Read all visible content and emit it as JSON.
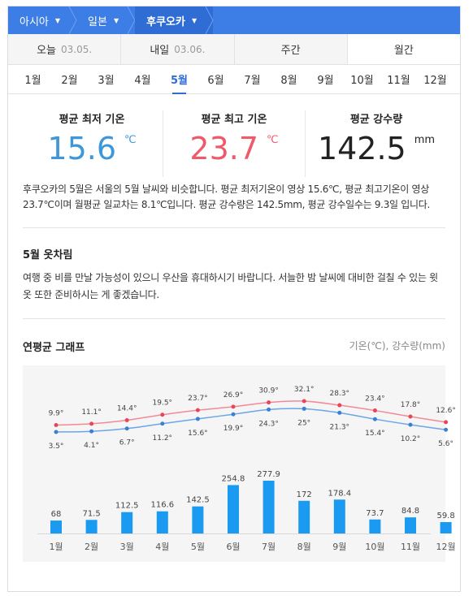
{
  "breadcrumb": [
    {
      "label": "아시아"
    },
    {
      "label": "일본"
    },
    {
      "label": "후쿠오카"
    }
  ],
  "day_tabs": [
    {
      "label": "오늘",
      "date": "03.05."
    },
    {
      "label": "내일",
      "date": "03.06."
    },
    {
      "label": "주간",
      "date": ""
    },
    {
      "label": "월간",
      "date": ""
    }
  ],
  "months": [
    "1월",
    "2월",
    "3월",
    "4월",
    "5월",
    "6월",
    "7월",
    "8월",
    "9월",
    "10월",
    "11월",
    "12월"
  ],
  "selected_month": "5월",
  "stats": {
    "min": {
      "label": "평균 최저 기온",
      "value": "15.6",
      "unit": "℃"
    },
    "max": {
      "label": "평균 최고 기온",
      "value": "23.7",
      "unit": "℃"
    },
    "rain": {
      "label": "평균 강수량",
      "value": "142.5",
      "unit": "mm"
    }
  },
  "description": "후쿠오카의 5월은 서울의 5월 날씨와 비슷합니다. 평균 최저기온이 영상 15.6℃, 평균 최고기온이 영상 23.7℃이며 월평균 일교차는 8.1℃입니다. 평균 강수량은 142.5mm, 평균 강수일수는 9.3일 입니다.",
  "clothing": {
    "title": "5월 옷차림",
    "text": "여행 중 비를 만날 가능성이 있으니 우산을 휴대하시기 바랍니다. 서늘한 밤 날씨에 대비한 걸칠 수 있는 윗옷 또한 준비하시는 게 좋겠습니다."
  },
  "graph": {
    "title": "연평균 그래프",
    "units": "기온(℃), 강수량(mm)"
  },
  "colors": {
    "accent": "#3d7ee6",
    "max_line": "#f28a97",
    "min_line": "#6aa6e8",
    "bar": "#1a9af0"
  },
  "chart_data": {
    "type": "bar",
    "categories": [
      "1월",
      "2월",
      "3월",
      "4월",
      "5월",
      "6월",
      "7월",
      "8월",
      "9월",
      "10월",
      "11월",
      "12월"
    ],
    "series": [
      {
        "values": [
          9.9,
          11.1,
          14.4,
          19.5,
          23.7,
          26.9,
          30.9,
          32.1,
          28.3,
          23.4,
          17.8,
          12.6
        ]
      },
      {
        "values": [
          3.5,
          4.1,
          6.7,
          11.2,
          15.6,
          19.9,
          24.3,
          25,
          21.3,
          15.4,
          10.2,
          5.6
        ]
      },
      {
        "values": [
          68,
          71.5,
          112.5,
          116.6,
          142.5,
          254.8,
          277.9,
          172,
          178.4,
          73.7,
          84.8,
          59.8
        ]
      }
    ],
    "max_labels": [
      "9.9°",
      "11.1°",
      "14.4°",
      "19.5°",
      "23.7°",
      "26.9°",
      "30.9°",
      "32.1°",
      "28.3°",
      "23.4°",
      "17.8°",
      "12.6°"
    ],
    "min_labels": [
      "3.5°",
      "4.1°",
      "6.7°",
      "11.2°",
      "15.6°",
      "19.9°",
      "24.3°",
      "25°",
      "21.3°",
      "15.4°",
      "10.2°",
      "5.6°"
    ],
    "rain_labels": [
      "68",
      "71.5",
      "112.5",
      "116.6",
      "142.5",
      "254.8",
      "277.9",
      "172",
      "178.4",
      "73.7",
      "84.8",
      "59.8"
    ]
  }
}
